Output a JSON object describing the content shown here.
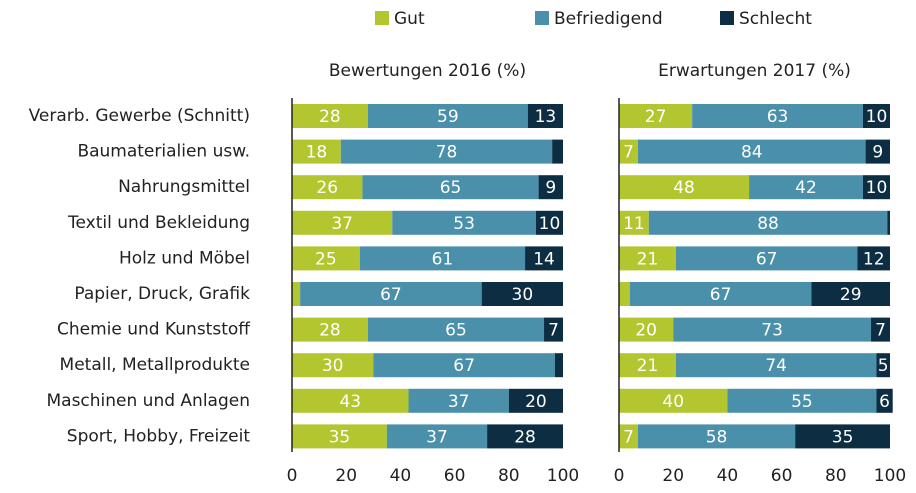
{
  "chart_data": {
    "type": "bar",
    "orientation": "horizontal",
    "stacked": true,
    "categories": [
      "Verarb. Gewerbe (Schnitt)",
      "Baumaterialien usw.",
      "Nahrungsmittel",
      "Textil und Bekleidung",
      "Holz und Möbel",
      "Papier, Druck, Grafik",
      "Chemie und Kunststoff",
      "Metall, Metallprodukte",
      "Maschinen und Anlagen",
      "Sport, Hobby, Freizeit"
    ],
    "series": [
      {
        "name": "Gut",
        "color": "#b3c630"
      },
      {
        "name": "Befriedigend",
        "color": "#4a90aa"
      },
      {
        "name": "Schlecht",
        "color": "#0c2d42"
      }
    ],
    "legend": "top",
    "panels": [
      {
        "title": "Bewertungen 2016 (%)",
        "values": [
          [
            28,
            18,
            26,
            37,
            25,
            3,
            28,
            30,
            43,
            35
          ],
          [
            59,
            78,
            65,
            53,
            61,
            67,
            65,
            67,
            37,
            37
          ],
          [
            13,
            4,
            9,
            10,
            14,
            30,
            7,
            3,
            20,
            28
          ]
        ],
        "value_labels": [
          [
            28,
            18,
            26,
            37,
            25,
            null,
            28,
            30,
            43,
            35
          ],
          [
            59,
            78,
            65,
            53,
            61,
            67,
            65,
            67,
            37,
            37
          ],
          [
            13,
            null,
            9,
            10,
            14,
            30,
            7,
            null,
            20,
            28
          ]
        ],
        "xlim": [
          0,
          100
        ],
        "xticks": [
          0,
          20,
          40,
          60,
          80,
          100
        ]
      },
      {
        "title": "Erwartungen 2017 (%)",
        "values": [
          [
            27,
            7,
            48,
            11,
            21,
            4,
            20,
            21,
            40,
            7
          ],
          [
            63,
            84,
            42,
            88,
            67,
            67,
            73,
            74,
            55,
            58
          ],
          [
            10,
            9,
            10,
            1,
            12,
            29,
            7,
            5,
            6,
            35
          ]
        ],
        "value_labels": [
          [
            27,
            7,
            48,
            11,
            21,
            null,
            20,
            21,
            40,
            7
          ],
          [
            63,
            84,
            42,
            88,
            67,
            67,
            73,
            74,
            55,
            58
          ],
          [
            10,
            9,
            10,
            null,
            12,
            29,
            7,
            5,
            6,
            35
          ]
        ],
        "xlim": [
          0,
          100
        ],
        "xticks": [
          0,
          20,
          40,
          60,
          80,
          100
        ]
      }
    ]
  }
}
